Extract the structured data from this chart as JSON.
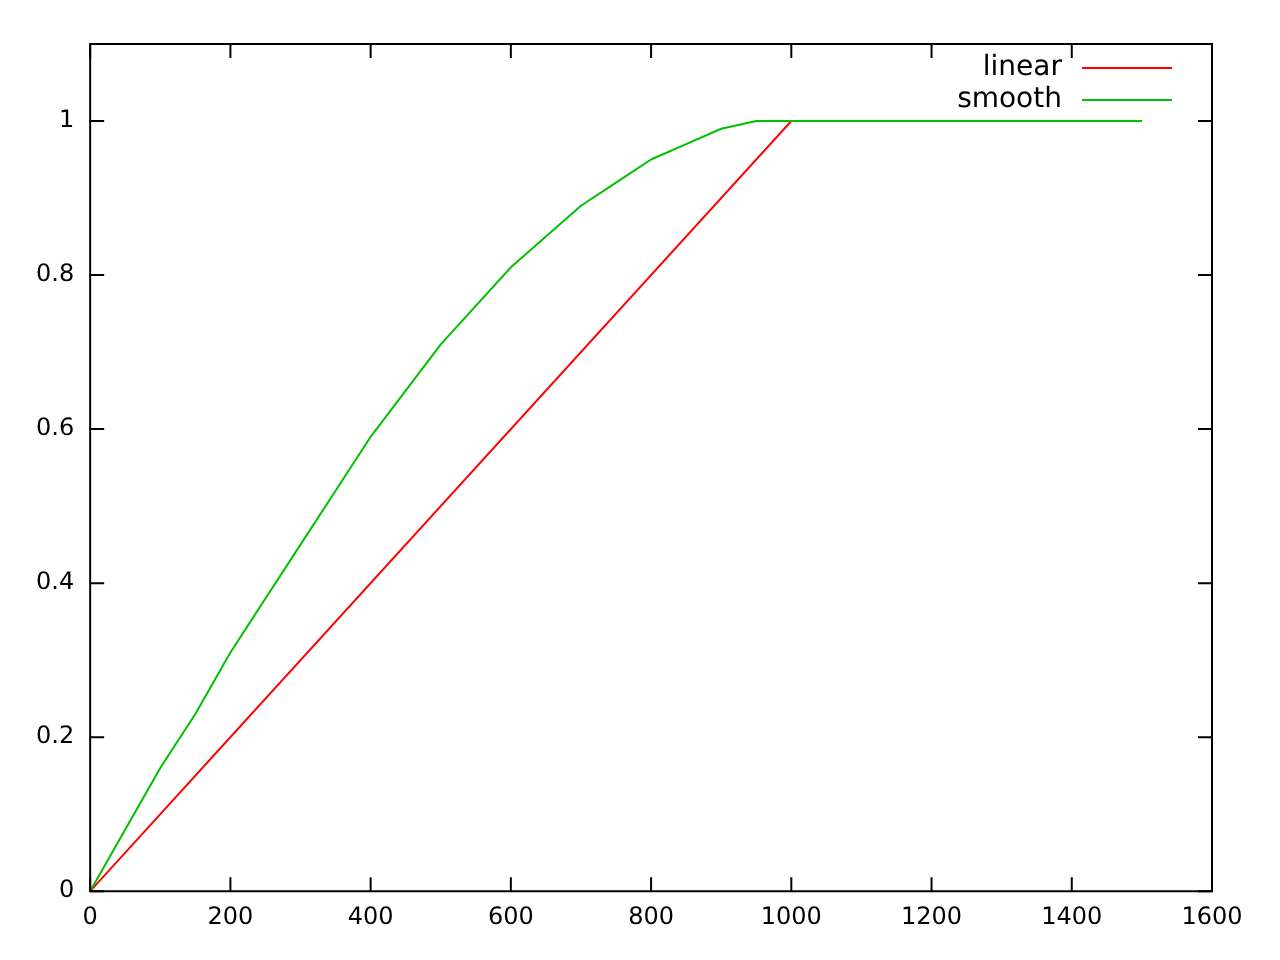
{
  "chart_data": {
    "type": "line",
    "xlim": [
      0,
      1600
    ],
    "xticks": [
      0,
      200,
      400,
      600,
      800,
      1000,
      1200,
      1400,
      1600
    ],
    "ylim": [
      0,
      1.1
    ],
    "yticks": [
      0,
      0.2,
      0.4,
      0.6,
      0.8,
      1
    ],
    "grid": false,
    "legend": "top right",
    "series": [
      {
        "name": "linear",
        "color": "#ff0000",
        "x": [
          0,
          1000,
          1500
        ],
        "values": [
          0,
          1,
          1
        ]
      },
      {
        "name": "smooth",
        "color": "#00c000",
        "x": [
          0,
          50,
          100,
          150,
          200,
          250,
          300,
          350,
          400,
          450,
          500,
          550,
          600,
          650,
          700,
          750,
          800,
          850,
          900,
          950,
          1000,
          1500
        ],
        "values": [
          0,
          0.08,
          0.16,
          0.23,
          0.31,
          0.38,
          0.45,
          0.52,
          0.59,
          0.65,
          0.71,
          0.76,
          0.81,
          0.85,
          0.89,
          0.92,
          0.95,
          0.97,
          0.99,
          1,
          1,
          1
        ]
      }
    ]
  }
}
